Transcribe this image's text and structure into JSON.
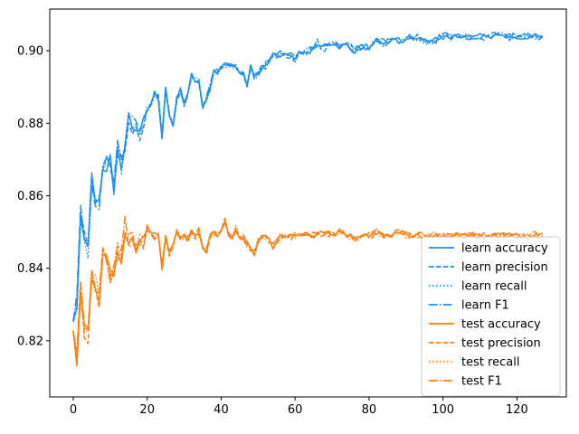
{
  "chart_data": {
    "type": "line",
    "title": "",
    "xlabel": "",
    "ylabel": "",
    "xlim": [
      -6.35,
      133.35
    ],
    "ylim": [
      0.8045,
      0.9115
    ],
    "xticks": [
      0,
      20,
      40,
      60,
      80,
      100,
      120
    ],
    "yticks": [
      0.82,
      0.84,
      0.86,
      0.88,
      0.9
    ],
    "ytick_format": 2,
    "grid": false,
    "legend_position": "lower-right",
    "colors": {
      "learn": "#1f8ff3",
      "test": "#ff7f0e"
    },
    "anchors": {
      "learn": [
        [
          0,
          0.827
        ],
        [
          1,
          0.83
        ],
        [
          2,
          0.855
        ],
        [
          3,
          0.85
        ],
        [
          4,
          0.845
        ],
        [
          5,
          0.864
        ],
        [
          6,
          0.86
        ],
        [
          7,
          0.858
        ],
        [
          8,
          0.869
        ],
        [
          9,
          0.868
        ],
        [
          10,
          0.87
        ],
        [
          11,
          0.862
        ],
        [
          12,
          0.874
        ],
        [
          13,
          0.868
        ],
        [
          14,
          0.874
        ],
        [
          15,
          0.882
        ],
        [
          16,
          0.879
        ],
        [
          17,
          0.878
        ],
        [
          18,
          0.877
        ],
        [
          19,
          0.882
        ],
        [
          20,
          0.884
        ],
        [
          21,
          0.885
        ],
        [
          22,
          0.888
        ],
        [
          23,
          0.887
        ],
        [
          24,
          0.876
        ],
        [
          25,
          0.89
        ],
        [
          26,
          0.882
        ],
        [
          27,
          0.88
        ],
        [
          28,
          0.887
        ],
        [
          29,
          0.889
        ],
        [
          30,
          0.885
        ],
        [
          31,
          0.888
        ],
        [
          32,
          0.893
        ],
        [
          33,
          0.892
        ],
        [
          34,
          0.892
        ],
        [
          35,
          0.884
        ],
        [
          36,
          0.887
        ],
        [
          37,
          0.89
        ],
        [
          38,
          0.894
        ],
        [
          39,
          0.894
        ],
        [
          40,
          0.896
        ],
        [
          42,
          0.896
        ],
        [
          44,
          0.895
        ],
        [
          46,
          0.894
        ],
        [
          47,
          0.89
        ],
        [
          48,
          0.896
        ],
        [
          49,
          0.893
        ],
        [
          50,
          0.894
        ],
        [
          52,
          0.896
        ],
        [
          54,
          0.899
        ],
        [
          56,
          0.899
        ],
        [
          58,
          0.899
        ],
        [
          60,
          0.898
        ],
        [
          62,
          0.9
        ],
        [
          64,
          0.9
        ],
        [
          66,
          0.902
        ],
        [
          68,
          0.901
        ],
        [
          70,
          0.902
        ],
        [
          72,
          0.901
        ],
        [
          74,
          0.902
        ],
        [
          76,
          0.9
        ],
        [
          78,
          0.901
        ],
        [
          80,
          0.901
        ],
        [
          82,
          0.903
        ],
        [
          84,
          0.902
        ],
        [
          86,
          0.903
        ],
        [
          88,
          0.903
        ],
        [
          90,
          0.903
        ],
        [
          92,
          0.904
        ],
        [
          94,
          0.903
        ],
        [
          96,
          0.902
        ],
        [
          98,
          0.903
        ],
        [
          100,
          0.904
        ],
        [
          105,
          0.904
        ],
        [
          110,
          0.904
        ],
        [
          115,
          0.904
        ],
        [
          120,
          0.904
        ],
        [
          125,
          0.904
        ],
        [
          127,
          0.904
        ]
      ],
      "test": [
        [
          0,
          0.824
        ],
        [
          1,
          0.815
        ],
        [
          2,
          0.835
        ],
        [
          3,
          0.823
        ],
        [
          4,
          0.822
        ],
        [
          5,
          0.838
        ],
        [
          6,
          0.836
        ],
        [
          7,
          0.832
        ],
        [
          8,
          0.844
        ],
        [
          9,
          0.843
        ],
        [
          10,
          0.838
        ],
        [
          11,
          0.84
        ],
        [
          12,
          0.845
        ],
        [
          13,
          0.842
        ],
        [
          14,
          0.851
        ],
        [
          15,
          0.848
        ],
        [
          16,
          0.847
        ],
        [
          17,
          0.846
        ],
        [
          18,
          0.849
        ],
        [
          19,
          0.848
        ],
        [
          20,
          0.851
        ],
        [
          21,
          0.85
        ],
        [
          22,
          0.849
        ],
        [
          23,
          0.85
        ],
        [
          24,
          0.84
        ],
        [
          25,
          0.848
        ],
        [
          26,
          0.844
        ],
        [
          27,
          0.847
        ],
        [
          28,
          0.85
        ],
        [
          29,
          0.848
        ],
        [
          30,
          0.849
        ],
        [
          31,
          0.848
        ],
        [
          32,
          0.85
        ],
        [
          33,
          0.849
        ],
        [
          34,
          0.85
        ],
        [
          35,
          0.846
        ],
        [
          36,
          0.845
        ],
        [
          37,
          0.849
        ],
        [
          38,
          0.85
        ],
        [
          39,
          0.849
        ],
        [
          40,
          0.851
        ],
        [
          41,
          0.853
        ],
        [
          42,
          0.85
        ],
        [
          43,
          0.849
        ],
        [
          44,
          0.851
        ],
        [
          45,
          0.849
        ],
        [
          46,
          0.849
        ],
        [
          47,
          0.847
        ],
        [
          48,
          0.846
        ],
        [
          49,
          0.844
        ],
        [
          50,
          0.848
        ],
        [
          52,
          0.849
        ],
        [
          54,
          0.846
        ],
        [
          56,
          0.849
        ],
        [
          58,
          0.849
        ],
        [
          60,
          0.849
        ],
        [
          62,
          0.85
        ],
        [
          64,
          0.849
        ],
        [
          66,
          0.849
        ],
        [
          68,
          0.85
        ],
        [
          70,
          0.849
        ],
        [
          72,
          0.85
        ],
        [
          74,
          0.849
        ],
        [
          76,
          0.848
        ],
        [
          78,
          0.849
        ],
        [
          80,
          0.849
        ],
        [
          82,
          0.85
        ],
        [
          84,
          0.849
        ],
        [
          86,
          0.849
        ],
        [
          88,
          0.85
        ],
        [
          90,
          0.849
        ],
        [
          92,
          0.849
        ],
        [
          94,
          0.849
        ],
        [
          96,
          0.849
        ],
        [
          98,
          0.849
        ],
        [
          100,
          0.849
        ],
        [
          105,
          0.849
        ],
        [
          110,
          0.849
        ],
        [
          115,
          0.849
        ],
        [
          120,
          0.849
        ],
        [
          125,
          0.849
        ],
        [
          127,
          0.849
        ]
      ]
    },
    "series": [
      {
        "name": "learn accuracy",
        "group": "learn",
        "style": "solid",
        "seed": 11,
        "noise": 0.0008
      },
      {
        "name": "learn precision",
        "group": "learn",
        "style": "dashed",
        "seed": 23,
        "noise": 0.0012
      },
      {
        "name": "learn recall",
        "group": "learn",
        "style": "dotted",
        "seed": 37,
        "noise": 0.0008
      },
      {
        "name": "learn F1",
        "group": "learn",
        "style": "dashdot",
        "seed": 41,
        "noise": 0.001
      },
      {
        "name": "test accuracy",
        "group": "test",
        "style": "solid",
        "seed": 53,
        "noise": 0.0008
      },
      {
        "name": "test precision",
        "group": "test",
        "style": "dashed",
        "seed": 67,
        "noise": 0.001
      },
      {
        "name": "test recall",
        "group": "test",
        "style": "dotted",
        "seed": 71,
        "noise": 0.0008
      },
      {
        "name": "test F1",
        "group": "test",
        "style": "dashdot",
        "seed": 83,
        "noise": 0.0012
      }
    ]
  }
}
